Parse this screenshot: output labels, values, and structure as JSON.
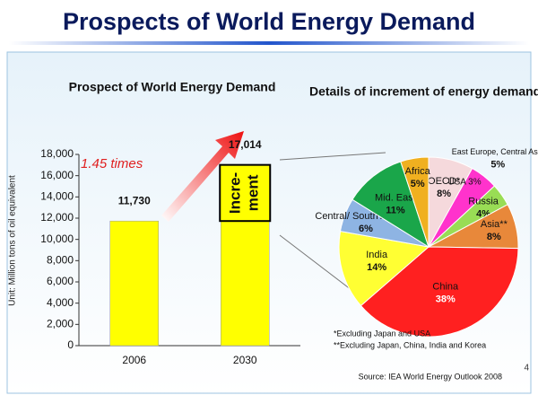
{
  "slide": {
    "title": "Prospects of World Energy Demand",
    "source": "Source: IEA World Energy Outlook 2008",
    "page_number": "4"
  },
  "chart_data": [
    {
      "type": "bar",
      "title": "Prospect of World Energy Demand",
      "y_label": "Unit: Million tons of oil equivalent",
      "categories": [
        "2006",
        "2030"
      ],
      "values": [
        11730,
        17014
      ],
      "value_labels": [
        "11,730",
        "17,014"
      ],
      "color": "#ffff00",
      "ylim": [
        0,
        18000
      ],
      "yticks": [
        0,
        {
          "value": 2000,
          "label": "2,000"
        },
        {
          "value": 4000,
          "label": "4,000"
        },
        {
          "value": 6000,
          "label": "6,000"
        },
        {
          "value": 8000,
          "label": "8,000"
        },
        {
          "value": 10000,
          "label": "10,000"
        },
        {
          "value": 12000,
          "label": "12,000"
        },
        {
          "value": 14000,
          "label": "14,000"
        },
        {
          "value": 16000,
          "label": "16,000"
        },
        {
          "value": 18000,
          "label": "18,000"
        }
      ],
      "annotations": [
        "1.45 times"
      ],
      "increment_label": [
        "Incre-",
        "ment"
      ]
    },
    {
      "type": "pie",
      "title": "Details of increment of energy demands",
      "categories": [
        "OECD*",
        "East Europe, Central Asia",
        "Russia",
        "Asia**",
        "China",
        "India",
        "Central/ South America",
        "Mid. East",
        "Africa"
      ],
      "values": [
        8,
        5,
        4,
        8,
        38,
        14,
        6,
        11,
        5
      ],
      "value_labels": [
        "8%",
        "5%",
        "4%",
        "8%",
        "38%",
        "14%",
        "6%",
        "11%",
        "5%"
      ],
      "colors": [
        "#f5d9dc",
        "#ff33cc",
        "#99dd55",
        "#e8883a",
        "#ff2020",
        "#ffff33",
        "#8eb4e3",
        "#1aa64a",
        "#f0b020"
      ],
      "annotations": [
        "USA 3%"
      ],
      "footnotes": [
        "*Excluding Japan and USA",
        "**Excluding Japan, China, India and Korea"
      ]
    }
  ]
}
